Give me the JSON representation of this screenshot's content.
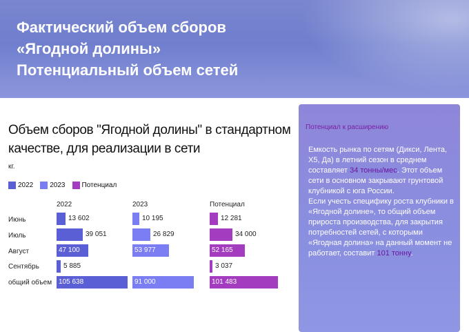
{
  "header": {
    "lines": [
      "Фактический объем сборов",
      "«Ягодной долины»",
      "Потенциальный объем сетей"
    ]
  },
  "chart_data": {
    "type": "bar",
    "title": "Объем сборов \"Ягодной долины\" в стандартном качестве, для реализации в сети",
    "unit": "кг.",
    "legend_position": "top-left",
    "categories": [
      "Июнь",
      "Июль",
      "Август",
      "Сентябрь",
      "общий объем"
    ],
    "series": [
      {
        "name": "2022",
        "color": "#5b5fd6",
        "values": [
          13602,
          39051,
          47100,
          5885,
          105638
        ],
        "labels": [
          "13 602",
          "39 051",
          "47 100",
          "5 885",
          "105 638"
        ]
      },
      {
        "name": "2023",
        "color": "#7b7ef2",
        "values": [
          10195,
          26829,
          53977,
          null,
          91000
        ],
        "labels": [
          "10 195",
          "26 829",
          "53 977",
          "",
          "91 000"
        ]
      },
      {
        "name": "Потенциал",
        "color": "#a43cbf",
        "values": [
          12281,
          34000,
          52165,
          3037,
          101483
        ],
        "labels": [
          "12 281",
          "34 000",
          "52 165",
          "3 037",
          "101 483"
        ]
      }
    ]
  },
  "panel": {
    "title": "Потенциал к расширению",
    "p1_before": "Емкость рынка по сетям (Дикси, Лента, X5, Да) в летний сезон в среднем составляет ",
    "p1_highlight": "34 тонны/мес",
    "p1_after": ". Этот объем сети в основном закрывают грунтовой клубникой с юга России.",
    "p2_before": "Если  учесть специфику роста клубники в «Ягодной долине», то общий объем прироста производства, для закрытия потребностей сетей, с которыми «Ягодная долина» на данный момент не работает, составит ",
    "p2_highlight": "101 тонну",
    "p2_after": "."
  }
}
